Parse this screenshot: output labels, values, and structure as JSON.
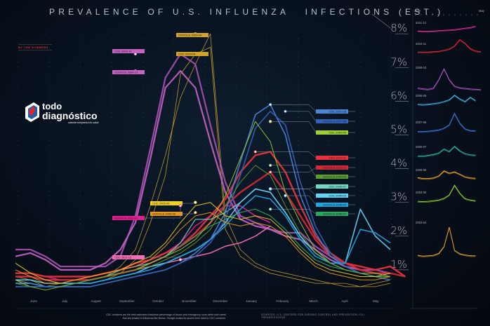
{
  "title": {
    "part1": "PREVALENCE OF U.S. INFLUENZA",
    "part2": "INFECTIONS (EST.)"
  },
  "byline": "BY THE NUMBERS",
  "logo": {
    "line1": "todo",
    "line2": "diagnóstico",
    "tagline": "solución temprana a tu salud",
    "colors": {
      "red": "#e2252b",
      "blue": "#1f5fb0",
      "white": "#ffffff"
    }
  },
  "footnote": "CDC numbers are the best estimated fractional percentage of doctor and emergency room visits each week that are related to influenza-like illness. Google scales its search-term data to CDC numbers.",
  "source": "SOURCES: U.S. CENTERS FOR DISEASE CONTROL AND PREVENTION; FLU TRENDS/GOOGLE",
  "chart_data": {
    "type": "line",
    "title": "PREVALENCE OF U.S. INFLUENZA INFECTIONS (EST.)",
    "xlabel": "",
    "ylabel": "",
    "categories": [
      "June",
      "July",
      "August",
      "September",
      "October",
      "November",
      "December",
      "January",
      "February",
      "March",
      "April",
      "May"
    ],
    "yticks": [
      "1%",
      "2%",
      "3%",
      "4%",
      "5%",
      "6%",
      "7%",
      "8%"
    ],
    "ylim": [
      0,
      8.5
    ],
    "grid": true,
    "legend": "inline-labels",
    "series": [
      {
        "name": "CDC 2003-04",
        "color": "#d4a42a",
        "width": 0.8,
        "label_at": [
          12,
          7.4
        ],
        "values": [
          0.8,
          0.7,
          0.5,
          0.6,
          0.6,
          0.6,
          0.7,
          0.9,
          1.3,
          2.4,
          3.8,
          6.8,
          7.4,
          7.6,
          2.2,
          1.4,
          1.1,
          0.9,
          0.8,
          0.7,
          0.6,
          0.6,
          0.5,
          0.5,
          0.5,
          0.6
        ]
      },
      {
        "name": "GOOGLE 2003-04",
        "color": "#c9a23c",
        "width": 0.8,
        "label_at": [
          12,
          8.0
        ],
        "values": [
          0.7,
          0.6,
          0.5,
          0.5,
          0.6,
          0.7,
          0.8,
          1.1,
          1.6,
          2.9,
          4.4,
          6.1,
          7.1,
          8.0,
          2.6,
          1.6,
          1.2,
          1.0,
          0.9,
          0.8,
          0.7,
          0.6,
          0.6,
          0.5,
          0.6,
          0.7
        ]
      },
      {
        "name": "CDC 2009-10",
        "color": "#a84fb0",
        "width": 2.2,
        "label_at": [
          8,
          7.4
        ],
        "values": [
          1.6,
          1.6,
          1.4,
          1.1,
          1.1,
          1.1,
          1.1,
          1.4,
          2.6,
          4.6,
          6.7,
          7.4,
          7.1,
          5.3,
          3.6,
          2.6,
          2.4,
          2.2,
          2.1,
          2.1,
          1.7,
          1.4,
          1.2,
          1.0,
          1.0,
          0.9
        ]
      },
      {
        "name": "GOOGLE 2009-10",
        "color": "#c463c2",
        "width": 2.2,
        "label_at": [
          8,
          6.9
        ],
        "values": [
          1.4,
          1.5,
          1.3,
          1.0,
          1.0,
          1.0,
          1.2,
          1.6,
          2.4,
          4.3,
          6.4,
          6.9,
          6.4,
          4.8,
          3.3,
          2.5,
          2.3,
          2.2,
          2.0,
          1.9,
          1.6,
          1.3,
          1.1,
          1.0,
          0.9,
          0.9
        ]
      },
      {
        "name": "CDC 2011-12",
        "color": "#f06fb5",
        "width": 1.6,
        "label_at": [
          11,
          1.3
        ],
        "values": [
          0.8,
          0.8,
          0.7,
          0.7,
          0.7,
          0.7,
          0.8,
          0.9,
          1.0,
          1.1,
          1.2,
          1.3,
          1.4,
          1.5,
          1.7,
          1.8,
          2.0,
          2.3
        ]
      },
      {
        "name": "GOOGLE 2011-12",
        "color": "#e02090",
        "width": 1.6,
        "label_at": [
          11,
          2.9
        ],
        "values": [
          0.9,
          0.9,
          0.8,
          0.7,
          0.7,
          0.8,
          0.9,
          1.0,
          1.1,
          1.3,
          1.5,
          1.8,
          2.3,
          2.6,
          2.9,
          2.9,
          2.6,
          2.4
        ]
      },
      {
        "name": "CDC 2010-11",
        "color": "#e8333a",
        "width": 2.4,
        "label_at": [
          16,
          4.5
        ],
        "values": [
          0.9,
          0.9,
          0.8,
          0.8,
          0.8,
          0.8,
          0.9,
          1.0,
          1.2,
          1.3,
          1.5,
          1.7,
          2.1,
          2.6,
          3.1,
          3.9,
          4.4,
          4.5,
          3.9,
          2.9,
          2.0,
          1.5,
          1.2,
          1.1,
          1.0,
          1.1,
          0.8
        ]
      },
      {
        "name": "GOOGLE 2010-11",
        "color": "#d02a36",
        "width": 2.4,
        "label_at": [
          17,
          3.9
        ],
        "values": [
          0.8,
          0.8,
          0.7,
          0.7,
          0.7,
          0.7,
          0.8,
          0.9,
          1.0,
          1.2,
          1.4,
          1.7,
          2.0,
          2.4,
          2.9,
          3.3,
          3.6,
          3.9,
          3.3,
          2.6,
          1.9,
          1.4,
          1.2,
          1.0,
          0.9,
          0.9,
          0.8
        ]
      },
      {
        "name": "CDC 2006-07",
        "color": "#6fd9c0",
        "width": 1.2,
        "label_at": [
          17,
          3.4
        ],
        "values": [
          0.6,
          0.6,
          0.5,
          0.5,
          0.6,
          0.7,
          0.8,
          1.0,
          1.1,
          1.2,
          1.4,
          1.8,
          2.5,
          2.5,
          2.7,
          3.0,
          3.4,
          3.3,
          2.7,
          2.0,
          1.5,
          1.2,
          1.0,
          0.9,
          0.8,
          0.8
        ]
      },
      {
        "name": "CDC 2008-09",
        "color": "#62d3f5",
        "width": 1.6,
        "label_at": [
          17,
          3.4
        ],
        "values": [
          0.7,
          0.7,
          0.6,
          0.6,
          0.6,
          0.6,
          0.7,
          0.8,
          0.9,
          1.1,
          1.2,
          1.4,
          1.6,
          1.9,
          2.4,
          3.0,
          3.4,
          3.3,
          2.7,
          2.0,
          1.5,
          1.2,
          1.2,
          2.8,
          2.0,
          1.6
        ]
      },
      {
        "name": "GOOGLE 2008-09",
        "color": "#1da6e0",
        "width": 1.6,
        "label_at": [
          18,
          3.2
        ],
        "values": [
          0.6,
          0.6,
          0.5,
          0.5,
          0.6,
          0.6,
          0.7,
          0.8,
          0.9,
          1.0,
          1.2,
          1.4,
          1.6,
          1.9,
          2.3,
          2.8,
          3.2,
          3.1,
          2.6,
          1.9,
          1.4,
          1.2,
          1.2,
          2.2,
          2.1,
          1.8
        ]
      },
      {
        "name": "GOOGLE 2006-07",
        "color": "#2aa65e",
        "width": 1.2,
        "label_at": [
          17,
          2.8
        ],
        "values": [
          0.5,
          0.5,
          0.5,
          0.5,
          0.6,
          0.7,
          0.8,
          0.9,
          1.0,
          1.2,
          1.4,
          1.7,
          2.0,
          2.3,
          2.5,
          2.7,
          2.8,
          2.6,
          2.2,
          1.7,
          1.3,
          1.1,
          1.0,
          0.9,
          0.8,
          0.8
        ]
      },
      {
        "name": "CDC 2007-08",
        "color": "#4a86d8",
        "width": 1.6,
        "label_at": [
          17,
          5.9
        ],
        "values": [
          0.6,
          0.6,
          0.5,
          0.5,
          0.5,
          0.5,
          0.6,
          0.7,
          0.8,
          0.9,
          1.0,
          1.2,
          1.5,
          1.9,
          2.7,
          4.2,
          5.6,
          5.9,
          5.0,
          3.2,
          2.1,
          1.4,
          1.1,
          0.9,
          0.8,
          0.7
        ]
      },
      {
        "name": "GOOGLE 2007-08",
        "color": "#3462b8",
        "width": 1.6,
        "label_at": [
          18,
          5.7
        ],
        "values": [
          0.5,
          0.5,
          0.5,
          0.5,
          0.5,
          0.5,
          0.6,
          0.7,
          0.8,
          0.9,
          1.0,
          1.2,
          1.4,
          1.8,
          2.5,
          3.8,
          5.2,
          5.7,
          5.3,
          3.6,
          2.3,
          1.5,
          1.1,
          0.9,
          0.8,
          0.7
        ]
      },
      {
        "name": "CDC 2004-05",
        "color": "#9ccf3a",
        "width": 1.0,
        "label_at": [
          17,
          5.4
        ],
        "values": [
          0.7,
          0.5,
          0.4,
          0.5,
          0.6,
          0.7,
          0.8,
          0.9,
          1.0,
          1.2,
          1.4,
          1.6,
          1.9,
          2.4,
          3.2,
          4.3,
          5.4,
          4.8,
          3.3,
          2.4,
          1.6,
          1.2,
          1.0,
          0.9,
          0.9,
          0.8
        ]
      },
      {
        "name": "GOOGLE 2004-05",
        "color": "#5b9e2a",
        "width": 1.0,
        "label_at": [
          17,
          4.1
        ],
        "values": [
          0.6,
          0.5,
          0.4,
          0.5,
          0.6,
          0.7,
          0.8,
          0.9,
          1.0,
          1.1,
          1.3,
          1.5,
          1.8,
          2.2,
          2.9,
          3.6,
          4.1,
          3.8,
          2.9,
          2.1,
          1.5,
          1.2,
          1.0,
          0.9,
          0.8,
          0.8
        ]
      },
      {
        "name": "CDC 2005-06",
        "color": "#f2d21e",
        "width": 1.0,
        "label_at": [
          12,
          3.0
        ],
        "values": [
          1.2,
          0.9,
          0.7,
          0.6,
          0.7,
          0.8,
          0.9,
          1.0,
          1.2,
          1.4,
          1.8,
          2.4,
          2.9,
          3.0,
          2.6,
          2.5,
          2.6,
          2.5,
          2.1,
          1.6,
          1.2,
          1.0,
          0.9,
          0.8,
          0.8,
          0.9
        ]
      },
      {
        "name": "GOOGLE 2005-06",
        "color": "#e8981e",
        "width": 1.0,
        "label_at": [
          12,
          2.7
        ],
        "values": [
          1.0,
          0.8,
          0.6,
          0.6,
          0.7,
          0.8,
          0.9,
          1.0,
          1.1,
          1.3,
          1.7,
          2.2,
          2.6,
          2.7,
          2.4,
          2.3,
          2.4,
          2.3,
          2.0,
          1.5,
          1.1,
          0.9,
          0.8,
          0.7,
          0.7,
          0.8
        ]
      }
    ],
    "annotations": [
      {
        "text": "CDC 2009-10",
        "bg": "#c463c2"
      },
      {
        "text": "GOOGLE 2009-10",
        "bg": "#c463c2"
      },
      {
        "text": "GOOGLE 2003-04",
        "bg": "#d4a42a"
      },
      {
        "text": "CDC 2003-04",
        "bg": "#d4a42a"
      },
      {
        "text": "CDC 2007-08",
        "bg": "#4a86d8"
      },
      {
        "text": "GOOGLE 2007-08",
        "bg": "#3462b8"
      },
      {
        "text": "CDC 2004-05",
        "bg": "#9ccf3a"
      },
      {
        "text": "CDC 2010-11",
        "bg": "#e8333a"
      },
      {
        "text": "GOOGLE 2010-11",
        "bg": "#d02a36"
      },
      {
        "text": "GOOGLE 2004-05",
        "bg": "#5b9e2a"
      },
      {
        "text": "CDC 2006-07",
        "bg": "#6fd9c0"
      },
      {
        "text": "CDC 2008-09",
        "bg": "#62d3f5"
      },
      {
        "text": "GOOGLE 2008-09",
        "bg": "#1da6e0"
      },
      {
        "text": "GOOGLE 2006-07",
        "bg": "#2aa65e"
      },
      {
        "text": "CDC 2005-06",
        "bg": "#f2d21e"
      },
      {
        "text": "GOOGLE 2005-06",
        "bg": "#e8981e"
      },
      {
        "text": "GOOGLE 2011-12",
        "bg": "#e02090"
      },
      {
        "text": "CDC 2011-12",
        "bg": "#f06fb5"
      }
    ]
  },
  "small_multiples": {
    "axis_start": "June",
    "axis_end": "May",
    "panels": [
      {
        "season": "2011-12",
        "color": "#e0309a",
        "values": [
          0.8,
          0.7,
          0.7,
          0.8,
          0.9,
          1.0,
          1.1,
          1.2,
          1.4,
          1.6,
          1.8,
          2.2
        ]
      },
      {
        "season": "2010-11",
        "color": "#e5282e",
        "values": [
          0.8,
          0.8,
          0.8,
          0.9,
          1.0,
          1.3,
          1.7,
          2.6,
          4.5,
          3.4,
          1.8,
          1.1,
          0.9
        ]
      },
      {
        "season": "2009-10",
        "color": "#b24fc0",
        "values": [
          1.4,
          1.2,
          1.0,
          1.4,
          4.0,
          7.4,
          4.0,
          2.0,
          1.5,
          1.3,
          1.1,
          1.0,
          0.9
        ]
      },
      {
        "season": "2008-09",
        "color": "#3fb8e6",
        "values": [
          0.7,
          0.6,
          0.7,
          0.9,
          1.1,
          1.5,
          2.0,
          3.4,
          2.3,
          1.5,
          2.8,
          1.8
        ]
      },
      {
        "season": "2007-08",
        "color": "#3e78d6",
        "values": [
          0.5,
          0.5,
          0.6,
          0.8,
          1.0,
          1.5,
          2.5,
          5.9,
          3.0,
          1.3,
          0.8,
          0.7
        ]
      },
      {
        "season": "2006-07",
        "color": "#2ab9a2",
        "values": [
          0.5,
          0.5,
          0.7,
          1.0,
          1.4,
          2.6,
          1.9,
          3.4,
          2.1,
          1.2,
          0.9,
          0.8
        ]
      },
      {
        "season": "2005-06",
        "color": "#f0a81e",
        "values": [
          1.0,
          0.7,
          0.7,
          0.9,
          1.5,
          3.0,
          2.3,
          2.7,
          2.0,
          1.2,
          0.9,
          0.8
        ]
      },
      {
        "season": "2004-05",
        "color": "#8ccf2a",
        "values": [
          0.6,
          0.5,
          0.6,
          0.8,
          1.0,
          1.5,
          2.5,
          5.4,
          3.0,
          1.4,
          1.0,
          0.8
        ]
      },
      {
        "season": "2003-04",
        "color": "#d9a032",
        "values": [
          0.7,
          0.5,
          0.6,
          0.7,
          1.2,
          3.0,
          8.0,
          2.0,
          1.1,
          0.8,
          0.6,
          0.6
        ]
      }
    ]
  }
}
